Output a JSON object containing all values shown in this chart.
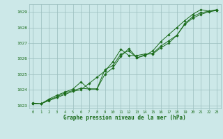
{
  "title": "Graphe pression niveau de la mer (hPa)",
  "bg_color": "#cce8e8",
  "plot_bg_color": "#cce8e8",
  "line_color": "#1a6b1a",
  "grid_color": "#9bbebe",
  "text_color": "#1a6b1a",
  "xlim": [
    -0.5,
    23.5
  ],
  "ylim": [
    1022.8,
    1029.5
  ],
  "yticks": [
    1023,
    1024,
    1025,
    1026,
    1027,
    1028,
    1029
  ],
  "xticks": [
    0,
    1,
    2,
    3,
    4,
    5,
    6,
    7,
    8,
    9,
    10,
    11,
    12,
    13,
    14,
    15,
    16,
    17,
    18,
    19,
    20,
    21,
    22,
    23
  ],
  "series": [
    {
      "x": [
        0,
        1,
        2,
        3,
        4,
        5,
        6,
        7,
        8,
        9,
        10,
        11,
        12,
        13,
        14,
        15,
        16,
        17,
        18,
        19,
        20,
        21,
        22,
        23
      ],
      "y": [
        1023.1,
        1023.1,
        1023.3,
        1023.5,
        1023.7,
        1023.9,
        1024.0,
        1024.4,
        1024.8,
        1025.2,
        1025.8,
        1026.6,
        1026.2,
        1026.2,
        1026.3,
        1026.3,
        1026.7,
        1027.0,
        1027.5,
        1028.2,
        1028.6,
        1028.85,
        1029.0,
        1029.1
      ]
    },
    {
      "x": [
        0,
        1,
        2,
        3,
        4,
        5,
        6,
        7,
        8,
        9,
        10,
        11,
        12,
        13,
        14,
        15,
        16,
        17,
        18,
        19,
        20,
        21,
        22,
        23
      ],
      "y": [
        1023.1,
        1023.1,
        1023.35,
        1023.55,
        1023.8,
        1023.95,
        1024.1,
        1024.05,
        1024.05,
        1025.0,
        1025.4,
        1026.15,
        1026.65,
        1026.05,
        1026.2,
        1026.5,
        1027.1,
        1027.55,
        1028.0,
        1028.45,
        1028.85,
        1029.15,
        1029.05,
        1029.1
      ]
    },
    {
      "x": [
        0,
        1,
        2,
        3,
        4,
        5,
        6,
        7,
        8,
        9,
        10,
        11,
        12,
        13,
        14,
        15,
        16,
        17,
        18,
        19,
        20,
        21,
        22,
        23
      ],
      "y": [
        1023.15,
        1023.1,
        1023.4,
        1023.65,
        1023.85,
        1024.05,
        1024.5,
        1024.05,
        1024.05,
        1025.3,
        1025.55,
        1026.3,
        1026.5,
        1026.05,
        1026.25,
        1026.35,
        1026.8,
        1027.15,
        1027.5,
        1028.25,
        1028.7,
        1028.95,
        1029.05,
        1029.15
      ]
    }
  ]
}
